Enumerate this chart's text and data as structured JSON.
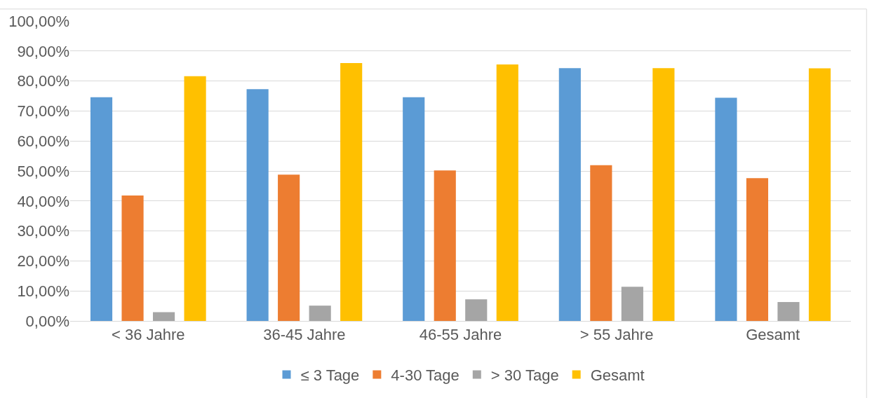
{
  "chart_data": {
    "type": "bar",
    "categories": [
      "< 36 Jahre",
      "36-45 Jahre",
      "46-55 Jahre",
      "> 55 Jahre",
      "Gesamt"
    ],
    "series": [
      {
        "name": "≤ 3 Tage",
        "color": "#5b9bd5",
        "values": [
          74.6,
          77.3,
          74.6,
          84.3,
          74.4
        ]
      },
      {
        "name": "4-30 Tage",
        "color": "#ed7d31",
        "values": [
          41.8,
          48.8,
          50.2,
          51.9,
          47.6
        ]
      },
      {
        "name": "> 30 Tage",
        "color": "#a5a5a5",
        "values": [
          2.9,
          5.1,
          7.2,
          11.4,
          6.3
        ]
      },
      {
        "name": "Gesamt",
        "color": "#ffc000",
        "values": [
          81.6,
          86.0,
          85.5,
          84.3,
          84.2
        ]
      }
    ],
    "ylim": [
      0,
      100
    ],
    "yticks": [
      {
        "value": 0,
        "label": "0,00%"
      },
      {
        "value": 10,
        "label": "10,00%"
      },
      {
        "value": 20,
        "label": "20,00%"
      },
      {
        "value": 30,
        "label": "30,00%"
      },
      {
        "value": 40,
        "label": "40,00%"
      },
      {
        "value": 50,
        "label": "50,00%"
      },
      {
        "value": 60,
        "label": "60,00%"
      },
      {
        "value": 70,
        "label": "70,00%"
      },
      {
        "value": 80,
        "label": "80,00%"
      },
      {
        "value": 90,
        "label": "90,00%"
      },
      {
        "value": 100,
        "label": "100,00%"
      }
    ],
    "grid": "y",
    "legend": "bottom"
  }
}
